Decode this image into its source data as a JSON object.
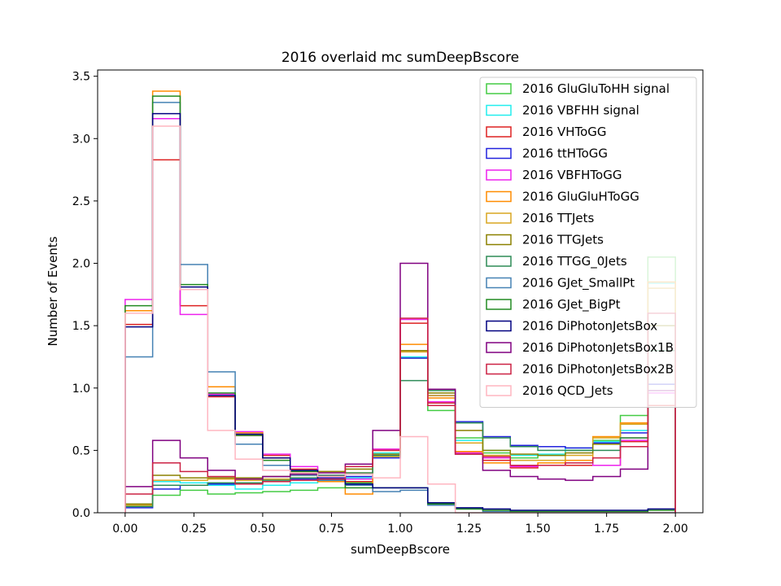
{
  "chart_data": {
    "type": "histogram-step",
    "title": "2016 overlaid mc sumDeepBscore",
    "xlabel": "sumDeepBscore",
    "ylabel": "Number of Events",
    "xlim": [
      -0.1,
      2.1
    ],
    "ylim": [
      0,
      3.55
    ],
    "xticks": [
      "0.00",
      "0.25",
      "0.50",
      "0.75",
      "1.00",
      "1.25",
      "1.50",
      "1.75",
      "2.00"
    ],
    "xtick_values": [
      0,
      0.25,
      0.5,
      0.75,
      1.0,
      1.25,
      1.5,
      1.75,
      2.0
    ],
    "yticks": [
      "0.0",
      "0.5",
      "1.0",
      "1.5",
      "2.0",
      "2.5",
      "3.0",
      "3.5"
    ],
    "ytick_values": [
      0,
      0.5,
      1.0,
      1.5,
      2.0,
      2.5,
      3.0,
      3.5
    ],
    "bin_edges": [
      0.0,
      0.1,
      0.2,
      0.3,
      0.4,
      0.5,
      0.6,
      0.7,
      0.8,
      0.9,
      1.0,
      1.1,
      1.2,
      1.3,
      1.4,
      1.5,
      1.6,
      1.7,
      1.8,
      1.9,
      2.0
    ],
    "legend_position": "top-right",
    "series": [
      {
        "name": "2016 GluGluToHH signal",
        "color": "#44cc44",
        "values": [
          0.07,
          0.14,
          0.18,
          0.15,
          0.16,
          0.17,
          0.18,
          0.2,
          0.24,
          0.45,
          1.24,
          0.82,
          0.6,
          0.48,
          0.44,
          0.46,
          0.5,
          0.58,
          0.78,
          2.05
        ]
      },
      {
        "name": "2016 VBFHH signal",
        "color": "#22eeee",
        "values": [
          0.05,
          0.25,
          0.24,
          0.22,
          0.19,
          0.22,
          0.24,
          0.26,
          0.28,
          0.48,
          1.25,
          0.88,
          0.58,
          0.5,
          0.46,
          0.47,
          0.52,
          0.57,
          0.66,
          1.84
        ]
      },
      {
        "name": "2016 VHToGG",
        "color": "#dd2222",
        "values": [
          1.51,
          2.83,
          1.66,
          0.93,
          0.62,
          0.46,
          0.35,
          0.29,
          0.25,
          0.51,
          1.52,
          0.88,
          0.49,
          0.42,
          0.36,
          0.38,
          0.38,
          0.38,
          0.57,
          0.86
        ]
      },
      {
        "name": "2016 ttHToGG",
        "color": "#2222dd",
        "values": [
          0.04,
          0.19,
          0.22,
          0.23,
          0.24,
          0.25,
          0.27,
          0.28,
          0.29,
          0.44,
          1.24,
          0.94,
          0.73,
          0.61,
          0.54,
          0.53,
          0.52,
          0.56,
          0.64,
          1.03
        ]
      },
      {
        "name": "2016 VBFHToGG",
        "color": "#ee22ee",
        "values": [
          1.71,
          3.16,
          1.59,
          0.95,
          0.65,
          0.47,
          0.37,
          0.3,
          0.27,
          0.51,
          1.55,
          0.89,
          0.48,
          0.44,
          0.37,
          0.38,
          0.4,
          0.38,
          0.58,
          0.96
        ]
      },
      {
        "name": "2016 GluGluHToGG",
        "color": "#ff8c00",
        "values": [
          1.62,
          3.38,
          1.79,
          1.01,
          0.64,
          0.44,
          0.33,
          0.25,
          0.15,
          0.5,
          1.35,
          0.92,
          0.49,
          0.4,
          0.38,
          0.4,
          0.42,
          0.61,
          0.72,
          1.85
        ]
      },
      {
        "name": "2016 TTJets",
        "color": "#d9a521",
        "values": [
          0.06,
          0.26,
          0.26,
          0.27,
          0.26,
          0.27,
          0.3,
          0.33,
          0.32,
          0.45,
          1.29,
          0.94,
          0.56,
          0.46,
          0.42,
          0.42,
          0.46,
          0.6,
          0.71,
          1.8
        ]
      },
      {
        "name": "2016 TTGJets",
        "color": "#8b8000",
        "values": [
          0.07,
          0.3,
          0.28,
          0.28,
          0.28,
          0.29,
          0.31,
          0.33,
          0.35,
          0.47,
          1.3,
          0.96,
          0.66,
          0.5,
          0.47,
          0.46,
          0.48,
          0.55,
          0.6,
          1.5
        ]
      },
      {
        "name": "2016 TTGG_0Jets",
        "color": "#2e8b57",
        "values": [
          0.05,
          0.22,
          0.22,
          0.24,
          0.24,
          0.26,
          0.28,
          0.3,
          0.32,
          0.46,
          1.06,
          0.98,
          0.72,
          0.6,
          0.53,
          0.5,
          0.5,
          0.5,
          0.6,
          1.3
        ]
      },
      {
        "name": "2016 GJet_SmallPt",
        "color": "#4682b4",
        "values": [
          1.25,
          3.29,
          1.99,
          1.13,
          0.55,
          0.38,
          0.3,
          0.26,
          0.22,
          0.17,
          0.18,
          0.06,
          0.03,
          0.01,
          0.01,
          0.0,
          0.0,
          0.0,
          0.0,
          0.0
        ]
      },
      {
        "name": "2016 GJet_BigPt",
        "color": "#228b22",
        "values": [
          1.66,
          3.34,
          1.83,
          0.96,
          0.62,
          0.42,
          0.33,
          0.27,
          0.2,
          0.2,
          0.2,
          0.07,
          0.03,
          0.02,
          0.01,
          0.01,
          0.01,
          0.01,
          0.01,
          0.02
        ]
      },
      {
        "name": "2016 DiPhotonJetsBox",
        "color": "#000080",
        "values": [
          1.49,
          3.2,
          1.81,
          0.94,
          0.63,
          0.44,
          0.34,
          0.27,
          0.23,
          0.2,
          0.2,
          0.08,
          0.04,
          0.03,
          0.02,
          0.02,
          0.02,
          0.02,
          0.02,
          0.03
        ]
      },
      {
        "name": "2016 DiPhotonJetsBox1B",
        "color": "#800080",
        "values": [
          0.21,
          0.58,
          0.44,
          0.34,
          0.27,
          0.29,
          0.31,
          0.32,
          0.39,
          0.66,
          2.0,
          0.99,
          0.47,
          0.34,
          0.29,
          0.27,
          0.26,
          0.29,
          0.35,
          0.98
        ]
      },
      {
        "name": "2016 DiPhotonJetsBox2B",
        "color": "#cc2244",
        "values": [
          0.15,
          0.4,
          0.33,
          0.29,
          0.23,
          0.25,
          0.26,
          0.27,
          0.37,
          0.5,
          1.56,
          0.86,
          0.47,
          0.45,
          0.38,
          0.38,
          0.4,
          0.44,
          0.53,
          1.6
        ]
      },
      {
        "name": "2016 QCD_Jets",
        "color": "#ffb6c1",
        "values": [
          1.6,
          3.1,
          1.79,
          0.66,
          0.43,
          0.34,
          0.32,
          0.29,
          0.31,
          0.28,
          0.61,
          0.23,
          0.0,
          0.0,
          0.0,
          0.0,
          0.0,
          0.0,
          0.0,
          0.0
        ]
      }
    ]
  }
}
